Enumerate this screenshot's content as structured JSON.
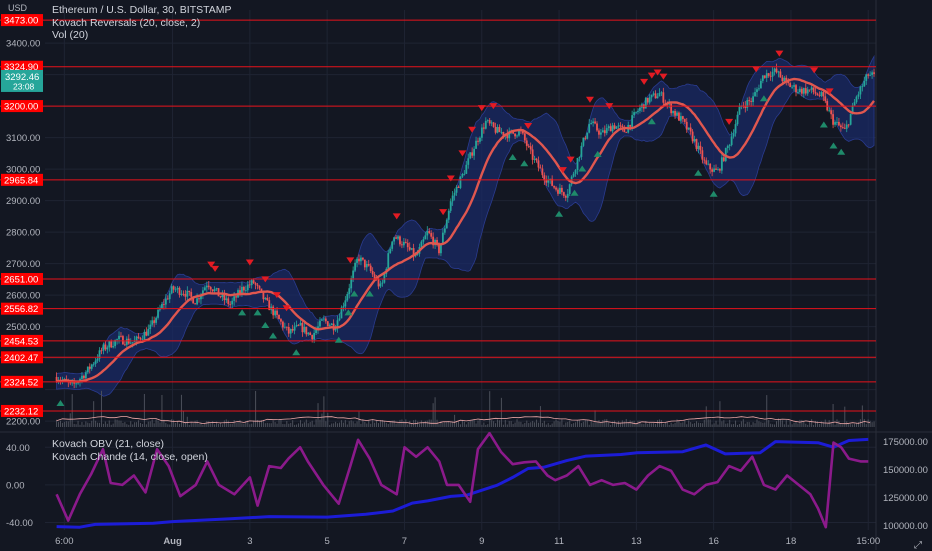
{
  "colors": {
    "background": "#131722",
    "grid": "#1f2433",
    "text": "#d1d4dc",
    "level_line": "#e8121b",
    "level_label_bg": "#ff0000",
    "price_label_bg": "#26a69a",
    "candle_up": "#26a69a",
    "candle_down": "#ef5350",
    "ma_line": "#e0574f",
    "band_fill": "#1a2a66",
    "reversal_down": "#e31b23",
    "reversal_up": "#1f8a6a",
    "volume": "#4b4f5a",
    "vol_ma": "#f0a8a8",
    "obv": "#1c1cd6",
    "chande": "#8b1a8b"
  },
  "legend": {
    "title": "Ethereum / U.S. Dollar, 30, BITSTAMP",
    "indicator1": "Kovach Reversals (20, close, 2)",
    "indicator2": "Vol (20)",
    "indicator3": "Kovach OBV (21, close)",
    "indicator4": "Kovach Chande (14, close, open)"
  },
  "currency": "USD",
  "chart_data": [
    {
      "type": "candlestick",
      "title": "Ethereum / U.S. Dollar, 30, BITSTAMP",
      "ylim": [
        2178,
        3505
      ],
      "y_ticks": [
        2200,
        2300,
        2400,
        2500,
        2600,
        2700,
        2800,
        2900,
        3000,
        3100,
        3200,
        3300,
        3400
      ],
      "y_tick_labels": [
        "2200.00",
        "2300.00",
        "2400.00",
        "2500.00",
        "2600.00",
        "2700.00",
        "2800.00",
        "2900.00",
        "3000.00",
        "3100.00",
        "3200.00",
        "3300.00",
        "3400.00"
      ],
      "x_ticks": [
        0.2,
        3,
        5,
        7,
        9,
        11,
        13,
        15,
        17,
        19,
        21
      ],
      "x_tick_labels": [
        "6:00",
        "Aug",
        "3",
        "5",
        "7",
        "9",
        "11",
        "13",
        "16",
        "18",
        "15:00"
      ],
      "xlim": [
        -0.3,
        21.2
      ],
      "price_path_approx": [
        [
          0.0,
          2340
        ],
        [
          0.4,
          2310
        ],
        [
          0.8,
          2360
        ],
        [
          1.2,
          2430
        ],
        [
          1.6,
          2460
        ],
        [
          2.0,
          2450
        ],
        [
          2.4,
          2490
        ],
        [
          2.7,
          2560
        ],
        [
          3.0,
          2620
        ],
        [
          3.3,
          2610
        ],
        [
          3.6,
          2580
        ],
        [
          3.9,
          2640
        ],
        [
          4.2,
          2600
        ],
        [
          4.5,
          2570
        ],
        [
          4.8,
          2620
        ],
        [
          5.1,
          2640
        ],
        [
          5.4,
          2580
        ],
        [
          5.7,
          2530
        ],
        [
          6.0,
          2480
        ],
        [
          6.3,
          2500
        ],
        [
          6.6,
          2470
        ],
        [
          6.9,
          2520
        ],
        [
          7.2,
          2500
        ],
        [
          7.5,
          2600
        ],
        [
          7.8,
          2720
        ],
        [
          8.1,
          2680
        ],
        [
          8.4,
          2620
        ],
        [
          8.7,
          2790
        ],
        [
          9.0,
          2760
        ],
        [
          9.3,
          2720
        ],
        [
          9.6,
          2800
        ],
        [
          9.9,
          2740
        ],
        [
          10.2,
          2900
        ],
        [
          10.5,
          2980
        ],
        [
          10.8,
          3070
        ],
        [
          11.1,
          3150
        ],
        [
          11.4,
          3120
        ],
        [
          11.7,
          3110
        ],
        [
          12.0,
          3120
        ],
        [
          12.3,
          3040
        ],
        [
          12.6,
          2980
        ],
        [
          12.9,
          2940
        ],
        [
          13.2,
          2920
        ],
        [
          13.5,
          3040
        ],
        [
          13.8,
          3150
        ],
        [
          14.1,
          3110
        ],
        [
          14.4,
          3140
        ],
        [
          14.7,
          3120
        ],
        [
          15.0,
          3180
        ],
        [
          15.3,
          3220
        ],
        [
          15.6,
          3240
        ],
        [
          15.9,
          3190
        ],
        [
          16.2,
          3150
        ],
        [
          16.5,
          3090
        ],
        [
          16.8,
          3010
        ],
        [
          17.1,
          2990
        ],
        [
          17.4,
          3080
        ],
        [
          17.7,
          3200
        ],
        [
          18.0,
          3220
        ],
        [
          18.3,
          3300
        ],
        [
          18.6,
          3310
        ],
        [
          18.9,
          3270
        ],
        [
          19.2,
          3250
        ],
        [
          19.5,
          3250
        ],
        [
          19.8,
          3230
        ],
        [
          20.1,
          3150
        ],
        [
          20.4,
          3120
        ],
        [
          20.7,
          3230
        ],
        [
          21.0,
          3300
        ],
        [
          21.2,
          3292
        ]
      ],
      "current_price": "3292.46",
      "current_price_sub": "23:08",
      "horizontal_levels": [
        3473.0,
        3324.9,
        3200.0,
        2965.84,
        2651.0,
        2556.82,
        2454.53,
        2402.47,
        2324.52,
        2232.12
      ],
      "horizontal_level_labels": [
        "3473.00",
        "3324.90",
        "3200.00",
        "2965.84",
        "2651.00",
        "2556.82",
        "2454.53",
        "2402.47",
        "2324.52",
        "2232.12"
      ],
      "reversal_down_x": [
        4.0,
        4.1,
        5.0,
        5.4,
        5.7,
        5.95,
        7.6,
        8.8,
        10.0,
        10.2,
        10.5,
        10.75,
        11.0,
        11.3,
        12.2,
        13.1,
        13.3,
        13.8,
        14.3,
        15.2,
        15.4,
        15.55,
        15.7,
        17.4,
        18.1,
        18.7,
        19.6,
        20.0
      ],
      "reversal_up_x": [
        0.1,
        4.8,
        5.2,
        5.4,
        5.6,
        6.2,
        7.3,
        7.55,
        7.7,
        8.1,
        11.8,
        12.1,
        13.0,
        13.4,
        13.6,
        14.0,
        15.4,
        16.6,
        17.0,
        18.3,
        19.85,
        20.1,
        20.3
      ],
      "series": [
        {
          "name": "Kovach Reversals (20, close, 2)"
        },
        {
          "name": "Vol (20)"
        }
      ]
    },
    {
      "type": "line",
      "y_ticks_left": [
        -40,
        0,
        40
      ],
      "y_tick_labels_left": [
        "-40.00",
        "0.00",
        "40.00"
      ],
      "ylim_left": [
        -48,
        52
      ],
      "y_ticks_right": [
        100000,
        125000,
        150000,
        175000
      ],
      "y_tick_labels_right": [
        "100000.00",
        "125000.00",
        "150000.00",
        "175000.00"
      ],
      "ylim_right": [
        96000,
        180000
      ],
      "series": [
        {
          "name": "Kovach OBV (21, close)",
          "axis": "right",
          "points": [
            [
              0.0,
              99000
            ],
            [
              0.6,
              98500
            ],
            [
              1.0,
              101000
            ],
            [
              2.5,
              102000
            ],
            [
              3.0,
              103500
            ],
            [
              4.5,
              106000
            ],
            [
              5.5,
              108000
            ],
            [
              7.0,
              107500
            ],
            [
              8.0,
              110000
            ],
            [
              8.7,
              113000
            ],
            [
              9.2,
              120000
            ],
            [
              9.6,
              122000
            ],
            [
              10.2,
              126000
            ],
            [
              10.6,
              127000
            ],
            [
              11.4,
              136000
            ],
            [
              11.8,
              143000
            ],
            [
              12.2,
              151000
            ],
            [
              12.6,
              152000
            ],
            [
              13.2,
              158000
            ],
            [
              13.7,
              162000
            ],
            [
              14.6,
              163500
            ],
            [
              15.0,
              165000
            ],
            [
              16.2,
              166000
            ],
            [
              16.8,
              172000
            ],
            [
              17.3,
              164000
            ],
            [
              18.2,
              165000
            ],
            [
              18.6,
              175000
            ],
            [
              19.7,
              174000
            ],
            [
              20.1,
              170000
            ],
            [
              20.5,
              176000
            ],
            [
              21.0,
              177000
            ]
          ]
        },
        {
          "name": "Kovach Chande (14, close, open)",
          "axis": "left",
          "points": [
            [
              0.0,
              -10
            ],
            [
              0.3,
              -38
            ],
            [
              0.6,
              -10
            ],
            [
              0.9,
              12
            ],
            [
              1.2,
              38
            ],
            [
              1.4,
              2
            ],
            [
              1.7,
              0
            ],
            [
              2.0,
              10
            ],
            [
              2.3,
              -8
            ],
            [
              2.6,
              38
            ],
            [
              2.9,
              20
            ],
            [
              3.2,
              -12
            ],
            [
              3.6,
              0
            ],
            [
              3.9,
              25
            ],
            [
              4.2,
              0
            ],
            [
              4.6,
              -10
            ],
            [
              5.0,
              8
            ],
            [
              5.2,
              -22
            ],
            [
              5.5,
              20
            ],
            [
              5.8,
              18
            ],
            [
              6.0,
              28
            ],
            [
              6.3,
              40
            ],
            [
              6.5,
              25
            ],
            [
              6.9,
              0
            ],
            [
              7.3,
              -20
            ],
            [
              7.6,
              20
            ],
            [
              7.8,
              48
            ],
            [
              8.1,
              28
            ],
            [
              8.4,
              0
            ],
            [
              8.8,
              -10
            ],
            [
              9.0,
              40
            ],
            [
              9.3,
              30
            ],
            [
              9.6,
              40
            ],
            [
              9.9,
              25
            ],
            [
              10.1,
              0
            ],
            [
              10.4,
              0
            ],
            [
              10.7,
              -18
            ],
            [
              10.9,
              38
            ],
            [
              11.2,
              55
            ],
            [
              11.5,
              35
            ],
            [
              11.8,
              22
            ],
            [
              12.1,
              24
            ],
            [
              12.4,
              25
            ],
            [
              12.7,
              10
            ],
            [
              12.9,
              5
            ],
            [
              13.2,
              10
            ],
            [
              13.5,
              20
            ],
            [
              13.8,
              0
            ],
            [
              14.1,
              5
            ],
            [
              14.4,
              0
            ],
            [
              14.7,
              2
            ],
            [
              15.0,
              -5
            ],
            [
              15.3,
              10
            ],
            [
              15.6,
              20
            ],
            [
              15.9,
              15
            ],
            [
              16.2,
              -5
            ],
            [
              16.5,
              -10
            ],
            [
              16.8,
              0
            ],
            [
              17.1,
              3
            ],
            [
              17.4,
              20
            ],
            [
              17.7,
              15
            ],
            [
              18.0,
              30
            ],
            [
              18.3,
              0
            ],
            [
              18.6,
              -5
            ],
            [
              18.9,
              10
            ],
            [
              19.2,
              0
            ],
            [
              19.5,
              -10
            ],
            [
              19.7,
              -25
            ],
            [
              19.9,
              -45
            ],
            [
              20.1,
              45
            ],
            [
              20.3,
              40
            ],
            [
              20.5,
              28
            ],
            [
              20.8,
              25
            ],
            [
              21.0,
              25
            ]
          ]
        }
      ]
    }
  ]
}
